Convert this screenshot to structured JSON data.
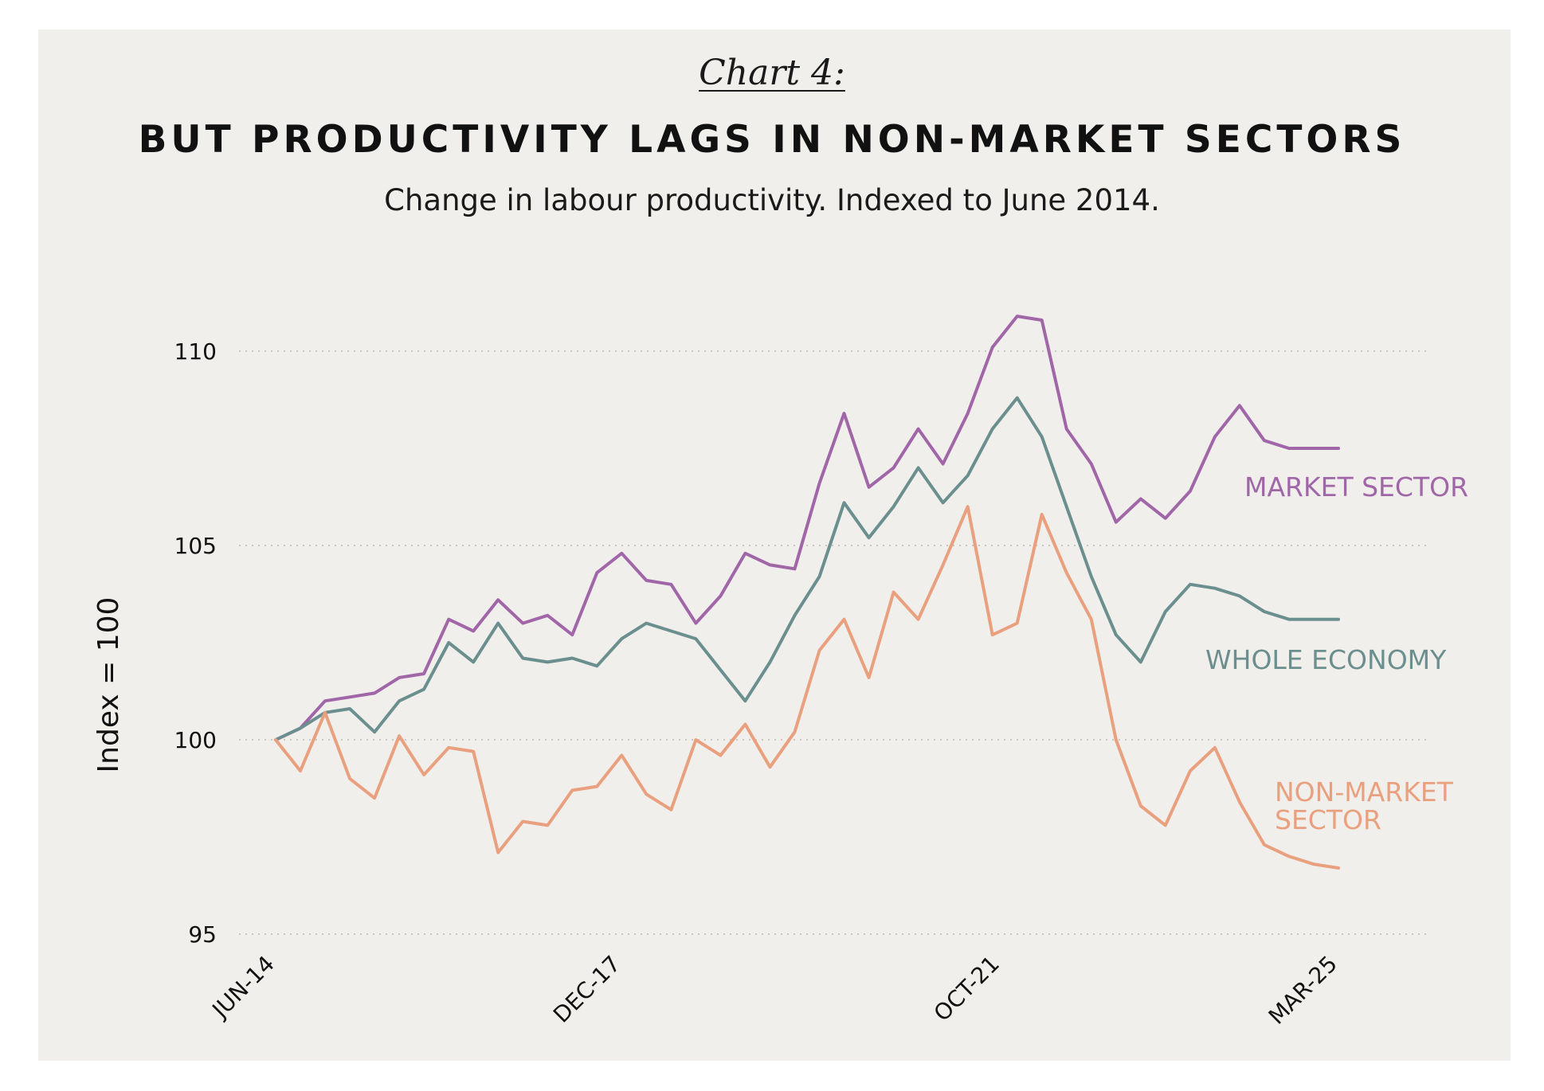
{
  "header": {
    "chart_label": "Chart 4:",
    "title": "BUT PRODUCTIVITY LAGS IN NON-MARKET SECTORS",
    "subtitle": "Change in labour productivity. Indexed to June 2014."
  },
  "colors": {
    "background": "#f1efeb",
    "market": "#a066a8",
    "whole": "#6b8f8e",
    "nonmarket": "#e9a07f",
    "grid": "#c9c5bf"
  },
  "chart_data": {
    "type": "line",
    "title": "BUT PRODUCTIVITY LAGS IN NON-MARKET SECTORS",
    "subtitle": "Change in labour productivity. Indexed to June 2014.",
    "xlabel": "",
    "ylabel": "Index = 100",
    "ylim": [
      95,
      111
    ],
    "yticks": [
      95,
      100,
      105,
      110
    ],
    "grid": "horizontal-dotted",
    "x_type": "date",
    "x_ticks": [
      {
        "date": "2014-06",
        "label": "JUN-14"
      },
      {
        "date": "2017-12",
        "label": "DEC-17"
      },
      {
        "date": "2021-10",
        "label": "OCT-21"
      },
      {
        "date": "2025-03",
        "label": "MAR-25"
      }
    ],
    "legend": "labels at series end",
    "series": [
      {
        "name": "MARKET SECTOR",
        "color": "#a066a8",
        "x": [
          "2014-06",
          "2014-09",
          "2014-12",
          "2015-03",
          "2015-06",
          "2015-09",
          "2015-12",
          "2016-03",
          "2016-06",
          "2016-09",
          "2016-12",
          "2017-03",
          "2017-06",
          "2017-09",
          "2017-12",
          "2018-03",
          "2018-06",
          "2018-09",
          "2018-12",
          "2019-03",
          "2019-06",
          "2019-09",
          "2019-12",
          "2020-03",
          "2020-06",
          "2020-09",
          "2020-12",
          "2021-03",
          "2021-06",
          "2021-09",
          "2021-12",
          "2022-03",
          "2022-06",
          "2022-09",
          "2022-12",
          "2023-03",
          "2023-06",
          "2023-09",
          "2023-12",
          "2024-03",
          "2024-06",
          "2024-09",
          "2024-12",
          "2025-03"
        ],
        "y": [
          100.0,
          100.3,
          101.0,
          101.1,
          101.2,
          101.6,
          101.7,
          103.1,
          102.8,
          103.6,
          103.0,
          103.2,
          102.7,
          104.3,
          104.8,
          104.1,
          104.0,
          103.0,
          103.7,
          104.8,
          104.5,
          104.4,
          106.6,
          108.4,
          106.5,
          107.0,
          108.0,
          107.1,
          108.4,
          110.1,
          110.9,
          110.8,
          108.0,
          107.1,
          105.6,
          106.2,
          105.7,
          106.4,
          107.8,
          108.6,
          107.7,
          107.5,
          107.5,
          107.5
        ]
      },
      {
        "name": "WHOLE ECONOMY",
        "color": "#6b8f8e",
        "x": [
          "2014-06",
          "2014-09",
          "2014-12",
          "2015-03",
          "2015-06",
          "2015-09",
          "2015-12",
          "2016-03",
          "2016-06",
          "2016-09",
          "2016-12",
          "2017-03",
          "2017-06",
          "2017-09",
          "2017-12",
          "2018-03",
          "2018-06",
          "2018-09",
          "2018-12",
          "2019-03",
          "2019-06",
          "2019-09",
          "2019-12",
          "2020-03",
          "2020-06",
          "2020-09",
          "2020-12",
          "2021-03",
          "2021-06",
          "2021-09",
          "2021-12",
          "2022-03",
          "2022-06",
          "2022-09",
          "2022-12",
          "2023-03",
          "2023-06",
          "2023-09",
          "2023-12",
          "2024-03",
          "2024-06",
          "2024-09",
          "2024-12",
          "2025-03"
        ],
        "y": [
          100.0,
          100.3,
          100.7,
          100.8,
          100.2,
          101.0,
          101.3,
          102.5,
          102.0,
          103.0,
          102.1,
          102.0,
          102.1,
          101.9,
          102.6,
          103.0,
          102.8,
          102.6,
          101.8,
          101.0,
          102.0,
          103.2,
          104.2,
          106.1,
          105.2,
          106.0,
          107.0,
          106.1,
          106.8,
          108.0,
          108.8,
          107.8,
          106.0,
          104.2,
          102.7,
          102.0,
          103.3,
          104.0,
          103.9,
          103.7,
          103.3,
          103.1,
          103.1,
          103.1
        ]
      },
      {
        "name": "NON-MARKET SECTOR",
        "color": "#e9a07f",
        "x": [
          "2014-06",
          "2014-09",
          "2014-12",
          "2015-03",
          "2015-06",
          "2015-09",
          "2015-12",
          "2016-03",
          "2016-06",
          "2016-09",
          "2016-12",
          "2017-03",
          "2017-06",
          "2017-09",
          "2017-12",
          "2018-03",
          "2018-06",
          "2018-09",
          "2018-12",
          "2019-03",
          "2019-06",
          "2019-09",
          "2019-12",
          "2020-03",
          "2020-06",
          "2020-09",
          "2020-12",
          "2021-03",
          "2021-06",
          "2021-09",
          "2021-12",
          "2022-03",
          "2022-06",
          "2022-09",
          "2022-12",
          "2023-03",
          "2023-06",
          "2023-09",
          "2023-12",
          "2024-03",
          "2024-06",
          "2024-09",
          "2024-12",
          "2025-03"
        ],
        "y": [
          100.0,
          99.2,
          100.7,
          99.0,
          98.5,
          100.1,
          99.1,
          99.8,
          99.7,
          97.1,
          97.9,
          97.8,
          98.7,
          98.8,
          99.6,
          98.6,
          98.2,
          100.0,
          99.6,
          100.4,
          99.3,
          100.2,
          102.3,
          103.1,
          101.6,
          103.8,
          103.1,
          104.5,
          106.0,
          102.7,
          103.0,
          105.8,
          104.3,
          103.1,
          100.0,
          98.3,
          97.8,
          99.2,
          99.8,
          98.4,
          97.3,
          97.0,
          96.8,
          96.7
        ]
      }
    ],
    "series_labels": [
      {
        "lines": [
          "MARKET SECTOR"
        ],
        "color": "#a066a8"
      },
      {
        "lines": [
          "WHOLE ECONOMY"
        ],
        "color": "#6b8f8e"
      },
      {
        "lines": [
          "NON-MARKET",
          "SECTOR"
        ],
        "color": "#e9a07f"
      }
    ]
  }
}
